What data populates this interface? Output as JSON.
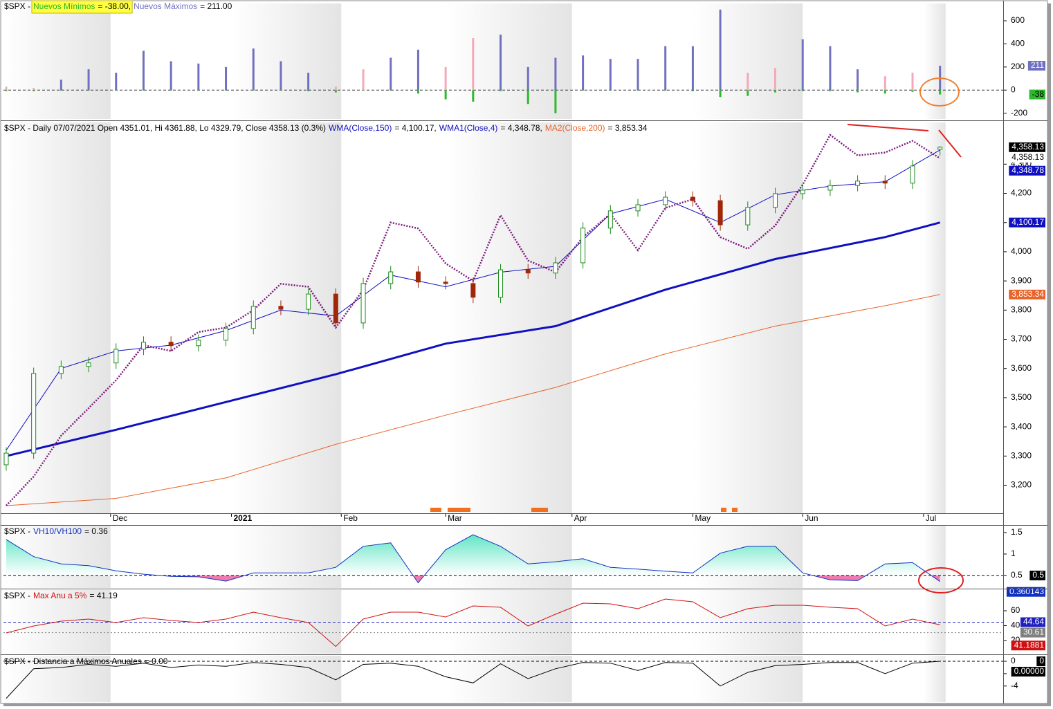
{
  "chart_data": [
    {
      "type": "bar",
      "title": "$SPX -",
      "xlim": [
        -0.5,
        181.5
      ],
      "ylim": [
        -250,
        750
      ],
      "yticks": [
        600,
        400,
        200,
        0,
        -200
      ],
      "x": [
        0,
        5,
        10,
        15,
        20,
        25,
        30,
        35,
        40,
        45,
        50,
        55,
        60,
        65,
        70,
        75,
        80,
        85,
        90,
        95,
        100,
        105,
        110,
        115,
        120,
        125,
        130,
        135,
        140,
        145,
        150,
        155,
        160,
        165,
        170
      ],
      "series": [
        {
          "name": "Nuevos Mínimos",
          "legend_value": "= -38.00,",
          "color": "#2db82d",
          "highlight": "#ffff40",
          "values": [
            -10,
            -10,
            -5,
            -5,
            -5,
            -5,
            -5,
            -5,
            -5,
            -5,
            -5,
            -10,
            -20,
            -5,
            -5,
            -30,
            -80,
            -100,
            -10,
            -120,
            -200,
            -5,
            -5,
            -5,
            -5,
            -10,
            -60,
            -50,
            -20,
            -10,
            -10,
            -20,
            -30,
            -15,
            -38
          ]
        },
        {
          "name": "Nuevos Máximos",
          "legend_value": "= 211.00",
          "color": "#7070c0",
          "colors": [
            "#f4a8b8",
            "#f4a8b8",
            "#7070c0",
            "#7070c0",
            "#7070c0",
            "#7070c0",
            "#7070c0",
            "#7070c0",
            "#7070c0",
            "#7070c0",
            "#7070c0",
            "#7070c0",
            "#f4a8b8",
            "#f4a8b8",
            "#7070c0",
            "#7070c0",
            "#f4a8b8",
            "#f4a8b8",
            "#7070c0",
            "#7070c0",
            "#7070c0",
            "#7070c0",
            "#7070c0",
            "#7070c0",
            "#7070c0",
            "#7070c0",
            "#7070c0",
            "#f4a8b8",
            "#f4a8b8",
            "#7070c0",
            "#7070c0",
            "#7070c0",
            "#f4a8b8",
            "#f4a8b8",
            "#7070c0"
          ],
          "values": [
            30,
            20,
            90,
            180,
            150,
            340,
            250,
            230,
            200,
            360,
            250,
            150,
            30,
            180,
            280,
            350,
            200,
            450,
            480,
            200,
            280,
            300,
            270,
            270,
            380,
            380,
            697,
            150,
            190,
            440,
            380,
            180,
            120,
            150,
            211
          ]
        }
      ]
    },
    {
      "type": "candlestick",
      "title": "$SPX - Daily 07/07/2021 Open 4351.01, Hi 4361.88, Lo 4329.79, Close 4358.13 (0.3%)",
      "xlim": [
        -0.5,
        181.5
      ],
      "ylim": [
        3104,
        4443
      ],
      "xticks": [
        {
          "value": 19,
          "label": "Dec"
        },
        {
          "value": 41,
          "label": "2021"
        },
        {
          "value": 61,
          "label": "Feb"
        },
        {
          "value": 80,
          "label": "Mar"
        },
        {
          "value": 103,
          "label": "Apr"
        },
        {
          "value": 125,
          "label": "May"
        },
        {
          "value": 145,
          "label": "Jun"
        },
        {
          "value": 167,
          "label": "Jul"
        }
      ],
      "yticks": [
        {
          "value": 3200,
          "label": "3,200"
        },
        {
          "value": 3300,
          "label": "3,300"
        },
        {
          "value": 3400,
          "label": "3,400"
        },
        {
          "value": 3500,
          "label": "3,500"
        },
        {
          "value": 3600,
          "label": "3,600"
        },
        {
          "value": 3700,
          "label": "3,700"
        },
        {
          "value": 3800,
          "label": "3,800"
        },
        {
          "value": 3900,
          "label": "3,900"
        },
        {
          "value": 4000,
          "label": "4,000"
        },
        {
          "value": 4100,
          "label": "4,100"
        },
        {
          "value": 4200,
          "label": "4,200"
        },
        {
          "value": 4300,
          "label": "4,300"
        }
      ],
      "x": [
        0,
        5,
        10,
        15,
        20,
        25,
        30,
        35,
        40,
        45,
        50,
        55,
        60,
        65,
        70,
        75,
        80,
        85,
        90,
        95,
        100,
        105,
        110,
        115,
        120,
        125,
        130,
        135,
        140,
        145,
        150,
        155,
        160,
        165,
        170
      ],
      "open": [
        3270,
        3310,
        3583,
        3607,
        3619,
        3666,
        3690,
        3678,
        3697,
        3737,
        3813,
        3803,
        3855,
        3756,
        3891,
        3931,
        3896,
        3891,
        3844,
        3938,
        3927,
        3962,
        4081,
        4140,
        4161,
        4187,
        4175,
        4092,
        4152,
        4199,
        4211,
        4227,
        4242,
        4235,
        4351.01
      ],
      "high": [
        3330,
        3603,
        3627,
        3639,
        3686,
        3710,
        3710,
        3717,
        3757,
        3833,
        3833,
        3875,
        3875,
        3911,
        3951,
        3951,
        3916,
        3911,
        3958,
        3958,
        3982,
        4101,
        4160,
        4181,
        4207,
        4207,
        4195,
        4172,
        4219,
        4231,
        4247,
        4262,
        4262,
        4314,
        4361.88
      ],
      "low": [
        3250,
        3290,
        3563,
        3587,
        3599,
        3646,
        3658,
        3658,
        3677,
        3717,
        3783,
        3783,
        3736,
        3736,
        3871,
        3876,
        3871,
        3824,
        3824,
        3907,
        3907,
        3942,
        4061,
        4120,
        4141,
        4155,
        4072,
        4072,
        4132,
        4179,
        4191,
        4207,
        4215,
        4215,
        4329.79
      ],
      "close": [
        3310,
        3583,
        3607,
        3619,
        3666,
        3690,
        3678,
        3697,
        3737,
        3813,
        3803,
        3855,
        3756,
        3891,
        3931,
        3896,
        3891,
        3844,
        3938,
        3927,
        3962,
        4081,
        4140,
        4161,
        4187,
        4175,
        4092,
        4152,
        4199,
        4211,
        4227,
        4242,
        4235,
        4294,
        4358.13
      ],
      "last_label": "4,358.13",
      "up_color": "#1a8a1a",
      "down_color": "#a0280a",
      "series": [
        {
          "name": "WMA(Close,150)",
          "legend_value": "= 4,100.17,",
          "color": "#1010c0",
          "last_label": "4,100.17",
          "x": [
            0,
            20,
            40,
            60,
            80,
            100,
            120,
            140,
            160,
            170
          ],
          "values": [
            3300,
            3390,
            3485,
            3580,
            3685,
            3745,
            3870,
            3975,
            4050,
            4100.17
          ]
        },
        {
          "name": "WMA1(Close,4)",
          "legend_value": "= 4,348.78,",
          "color": "#1010c0",
          "last_label": "4,348.78",
          "x": [
            0,
            10,
            20,
            30,
            40,
            50,
            60,
            70,
            80,
            90,
            100,
            110,
            120,
            130,
            140,
            150,
            160,
            170
          ],
          "values": [
            3320,
            3600,
            3660,
            3680,
            3730,
            3800,
            3780,
            3920,
            3880,
            3930,
            3950,
            4130,
            4180,
            4100,
            4195,
            4225,
            4240,
            4348.78
          ]
        },
        {
          "name": "MA2(Close,200)",
          "legend_value": "= 3,853.34",
          "color": "#e8642a",
          "last_label": "3,853.34",
          "x": [
            0,
            20,
            40,
            60,
            80,
            100,
            120,
            140,
            160,
            170
          ],
          "values": [
            3130,
            3155,
            3225,
            3340,
            3440,
            3535,
            3650,
            3745,
            3815,
            3853.34
          ]
        },
        {
          "color": "#7a1a7a",
          "dashed": true,
          "x": [
            0,
            5,
            10,
            15,
            20,
            25,
            30,
            35,
            40,
            45,
            50,
            55,
            60,
            65,
            70,
            75,
            80,
            85,
            90,
            95,
            100,
            105,
            110,
            115,
            120,
            125,
            130,
            135,
            140,
            145,
            150,
            155,
            160,
            165,
            170
          ],
          "values": [
            3130,
            3230,
            3370,
            3464,
            3560,
            3680,
            3660,
            3725,
            3740,
            3800,
            3890,
            3880,
            3740,
            3870,
            4100,
            4080,
            3960,
            3900,
            4125,
            3970,
            3930,
            4050,
            4130,
            4005,
            4150,
            4180,
            4050,
            4010,
            4090,
            4230,
            4400,
            4330,
            4340,
            4380,
            4320
          ]
        }
      ]
    },
    {
      "type": "area",
      "title": "$SPX -",
      "xlim": [
        -0.5,
        181.5
      ],
      "ylim": [
        0.21,
        1.66
      ],
      "yticks": [
        0.5,
        1,
        1.5
      ],
      "x": [
        0,
        5,
        10,
        15,
        20,
        25,
        30,
        35,
        40,
        45,
        50,
        55,
        60,
        65,
        70,
        75,
        80,
        85,
        90,
        95,
        100,
        105,
        110,
        115,
        120,
        125,
        130,
        135,
        140,
        145,
        150,
        155,
        160,
        165,
        170
      ],
      "hlines": [
        {
          "value": 0.5,
          "color": "#000000"
        }
      ],
      "series": [
        {
          "name": "VH10/VH100",
          "legend_value": "= 0.36",
          "color": "#1030c0",
          "fill_above": "#3fe0b8",
          "fill_below": "#f07ab0",
          "values": [
            1.34,
            0.94,
            0.77,
            0.73,
            0.61,
            0.53,
            0.48,
            0.47,
            0.37,
            0.56,
            0.56,
            0.56,
            0.69,
            1.18,
            1.26,
            0.33,
            1.1,
            1.45,
            1.18,
            0.77,
            0.82,
            0.89,
            0.69,
            0.65,
            0.6,
            0.56,
            1.02,
            1.18,
            1.18,
            0.56,
            0.4,
            0.38,
            0.77,
            0.8,
            0.360143
          ]
        }
      ]
    },
    {
      "type": "line",
      "title": "$SPX -",
      "xlim": [
        -0.5,
        181.5
      ],
      "ylim": [
        2.3,
        87.9
      ],
      "yticks": [
        20,
        40,
        60
      ],
      "x": [
        0,
        5,
        10,
        15,
        20,
        25,
        30,
        35,
        40,
        45,
        50,
        55,
        60,
        65,
        70,
        75,
        80,
        85,
        90,
        95,
        100,
        105,
        110,
        115,
        120,
        125,
        130,
        135,
        140,
        145,
        150,
        155,
        160,
        165,
        170
      ],
      "hlines": [
        {
          "value": 44.64,
          "color": "#2020c0"
        },
        {
          "value": 30.61,
          "color": "#808080"
        }
      ],
      "series": [
        {
          "name": "Max Anu a 5%",
          "legend_value": "= 41.19",
          "color": "#d01010",
          "values": [
            30.2,
            39.5,
            46,
            48.8,
            44.2,
            50.7,
            47,
            44.2,
            48.8,
            58.1,
            50.7,
            44.2,
            12,
            48.8,
            58.1,
            58.1,
            51.6,
            66.5,
            64.7,
            39.5,
            55.3,
            70.2,
            69.3,
            62.8,
            75.8,
            72.1,
            50.7,
            62.8,
            67.4,
            67.4,
            64.7,
            62.8,
            39.5,
            48.8,
            41.1881
          ]
        }
      ]
    },
    {
      "type": "line",
      "title": "$SPX -",
      "xlim": [
        -0.5,
        181.5
      ],
      "ylim": [
        -6.6,
        0.9
      ],
      "yticks": [
        -4,
        -2,
        0
      ],
      "x": [
        0,
        5,
        10,
        15,
        20,
        25,
        30,
        35,
        40,
        45,
        50,
        55,
        60,
        65,
        70,
        75,
        80,
        85,
        90,
        95,
        100,
        105,
        110,
        115,
        120,
        125,
        130,
        135,
        140,
        145,
        150,
        155,
        160,
        165,
        170
      ],
      "hlines": [
        {
          "value": 0,
          "color": "#000000"
        }
      ],
      "series": [
        {
          "name": "Distancia a Máximos Anuales",
          "legend_value": "= 0.00",
          "color": "#000000",
          "last_label": "0.00000",
          "values": [
            -6,
            -1.2,
            -1,
            -0.5,
            -0.8,
            -0.3,
            -1,
            -0.6,
            -0.8,
            -0.2,
            -0.5,
            -1,
            -3,
            -0.5,
            -0.3,
            -0.8,
            -2.5,
            -3.5,
            -0.4,
            -2.8,
            -1.2,
            -0.2,
            -0.3,
            -1.5,
            -0.2,
            -0.3,
            -4,
            -1.8,
            -0.7,
            -0.5,
            -0.2,
            -0.2,
            -2,
            -0.3,
            0
          ]
        }
      ]
    }
  ]
}
